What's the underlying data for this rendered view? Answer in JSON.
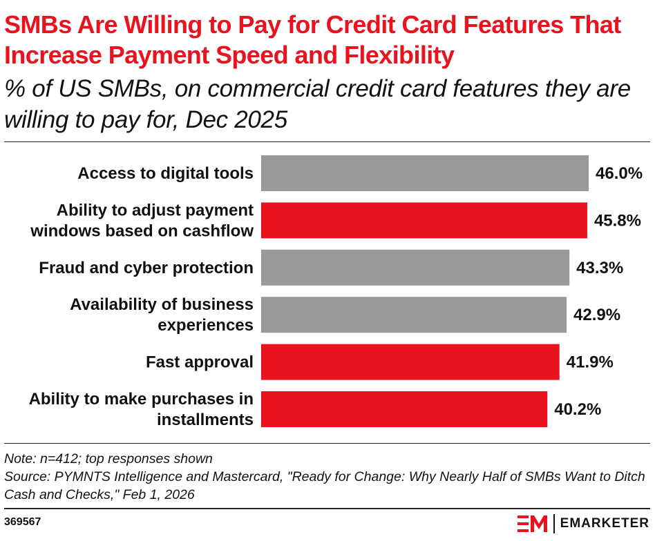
{
  "header": {
    "title": "SMBs Are Willing to Pay for Credit Card Features That Increase Payment Speed and Flexibility",
    "subtitle": "% of US SMBs, on commercial credit card features they are willing to pay for, Dec 2025"
  },
  "chart_data": {
    "type": "bar",
    "orientation": "horizontal",
    "categories": [
      [
        "Access to digital tools"
      ],
      [
        "Ability to adjust payment",
        "windows based on cashflow"
      ],
      [
        "Fraud and cyber protection"
      ],
      [
        "Availability of business",
        "experiences"
      ],
      [
        "Fast approval"
      ],
      [
        "Ability to make purchases in",
        "installments"
      ]
    ],
    "values": [
      46.0,
      45.8,
      43.3,
      42.9,
      41.9,
      40.2
    ],
    "value_labels": [
      "46.0%",
      "45.8%",
      "43.3%",
      "42.9%",
      "41.9%",
      "40.2%"
    ],
    "bar_colors": [
      "#999999",
      "#e8131f",
      "#999999",
      "#999999",
      "#e8131f",
      "#e8131f"
    ],
    "xlim": [
      0,
      46
    ],
    "grid": false,
    "legend": "none"
  },
  "footer": {
    "note": "Note: n=412; top responses shown",
    "source": "Source: PYMNTS Intelligence and Mastercard, \"Ready for Change: Why Nearly Half of SMBs Want to Ditch Cash and Checks,\" Feb 1, 2026",
    "chart_id": "369567",
    "brand_name": "EMARKETER",
    "logo_icon": "em-logo-icon"
  },
  "colors": {
    "accent": "#e8131f",
    "neutral_bar": "#999999",
    "text": "#111111"
  }
}
